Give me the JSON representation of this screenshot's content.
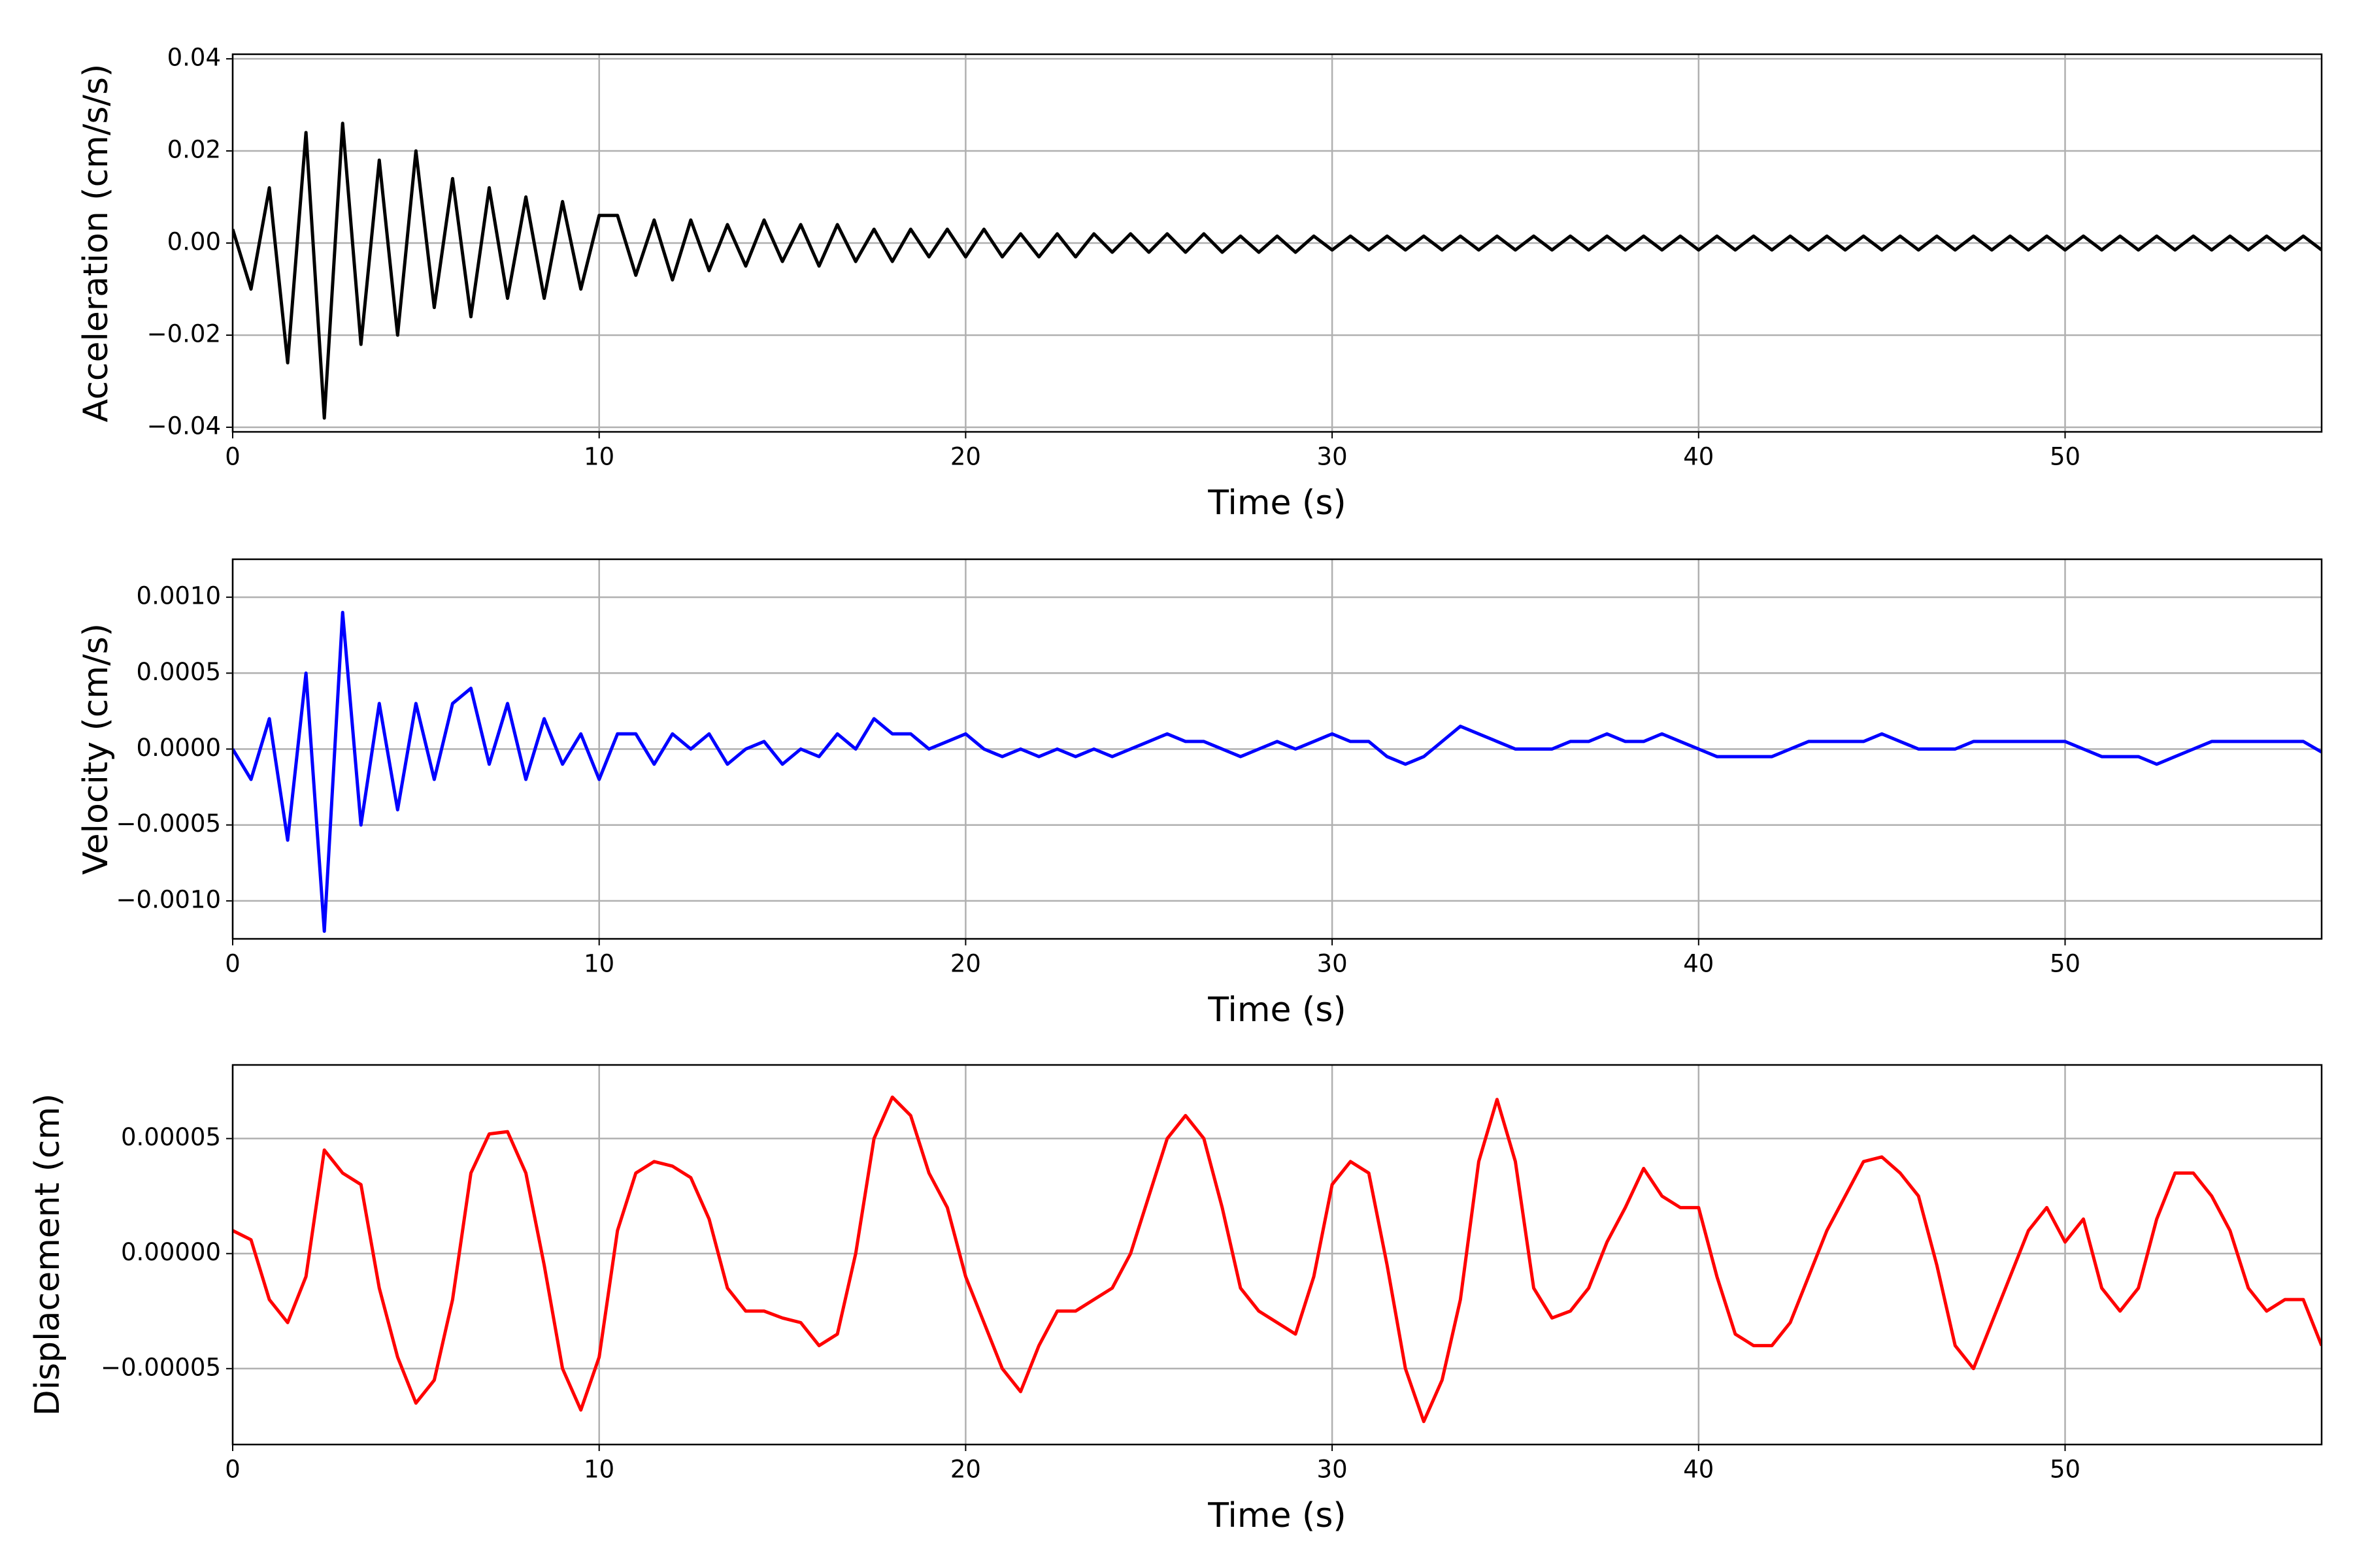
{
  "chart_data": [
    {
      "type": "line",
      "xlabel": "Time (s)",
      "ylabel": "Acceleration (cm/s/s)",
      "color": "#000000",
      "grid": true,
      "xlim": [
        0,
        57
      ],
      "xticks": [
        0,
        10,
        20,
        30,
        40,
        50
      ],
      "ylim": [
        -0.041,
        0.041
      ],
      "yticks": [
        {
          "value": -0.04,
          "label": "−0.04"
        },
        {
          "value": -0.02,
          "label": "−0.02"
        },
        {
          "value": 0,
          "label": "0.00"
        },
        {
          "value": 0.02,
          "label": "0.02"
        },
        {
          "value": 0.04,
          "label": "0.04"
        }
      ],
      "x": [
        0,
        0.5,
        1,
        1.5,
        2,
        2.5,
        3,
        3.5,
        4,
        4.5,
        5,
        5.5,
        6,
        6.5,
        7,
        7.5,
        8,
        8.5,
        9,
        9.5,
        10,
        10.5,
        11,
        11.5,
        12,
        12.5,
        13,
        13.5,
        14,
        14.5,
        15,
        15.5,
        16,
        16.5,
        17,
        17.5,
        18,
        18.5,
        19,
        19.5,
        20,
        20.5,
        21,
        21.5,
        22,
        22.5,
        23,
        23.5,
        24,
        24.5,
        25,
        25.5,
        26,
        26.5,
        27,
        27.5,
        28,
        28.5,
        29,
        29.5,
        30,
        30.5,
        31,
        31.5,
        32,
        32.5,
        33,
        33.5,
        34,
        34.5,
        35,
        35.5,
        36,
        36.5,
        37,
        37.5,
        38,
        38.5,
        39,
        39.5,
        40,
        40.5,
        41,
        41.5,
        42,
        42.5,
        43,
        43.5,
        44,
        44.5,
        45,
        45.5,
        46,
        46.5,
        47,
        47.5,
        48,
        48.5,
        49,
        49.5,
        50,
        50.5,
        51,
        51.5,
        52,
        52.5,
        53,
        53.5,
        54,
        54.5,
        55,
        55.5,
        56,
        56.5,
        57
      ],
      "values": [
        0.003,
        -0.01,
        0.012,
        -0.026,
        0.024,
        -0.038,
        0.026,
        -0.022,
        0.018,
        -0.02,
        0.02,
        -0.014,
        0.014,
        -0.016,
        0.012,
        -0.012,
        0.01,
        -0.012,
        0.009,
        -0.01,
        0.006,
        0.006,
        -0.007,
        0.005,
        -0.008,
        0.005,
        -0.006,
        0.004,
        -0.005,
        0.005,
        -0.004,
        0.004,
        -0.005,
        0.004,
        -0.004,
        0.003,
        -0.004,
        0.003,
        -0.003,
        0.003,
        -0.003,
        0.003,
        -0.003,
        0.002,
        -0.003,
        0.002,
        -0.003,
        0.002,
        -0.002,
        0.002,
        -0.002,
        0.002,
        -0.002,
        0.002,
        -0.002,
        0.0015,
        -0.002,
        0.0015,
        -0.002,
        0.0015,
        -0.0015,
        0.0015,
        -0.0015,
        0.0015,
        -0.0015,
        0.0015,
        -0.0015,
        0.0015,
        -0.0015,
        0.0015,
        -0.0015,
        0.0015,
        -0.0015,
        0.0015,
        -0.0015,
        0.0015,
        -0.0015,
        0.0015,
        -0.0015,
        0.0015,
        -0.0015,
        0.0015,
        -0.0015,
        0.0015,
        -0.0015,
        0.0015,
        -0.0015,
        0.0015,
        -0.0015,
        0.0015,
        -0.0015,
        0.0015,
        -0.0015,
        0.0015,
        -0.0015,
        0.0015,
        -0.0015,
        0.0015,
        -0.0015,
        0.0015,
        -0.0015,
        0.0015,
        -0.0015,
        0.0015,
        -0.0015,
        0.0015,
        -0.0015,
        0.0015,
        -0.0015,
        0.0015,
        -0.0015,
        0.0015,
        -0.0015,
        0.0015,
        -0.0015
      ]
    },
    {
      "type": "line",
      "xlabel": "Time (s)",
      "ylabel": "Velocity (cm/s)",
      "color": "#0000ff",
      "grid": true,
      "xlim": [
        0,
        57
      ],
      "xticks": [
        0,
        10,
        20,
        30,
        40,
        50
      ],
      "ylim": [
        -0.00125,
        0.00125
      ],
      "yticks": [
        {
          "value": -0.001,
          "label": "−0.0010"
        },
        {
          "value": -0.0005,
          "label": "−0.0005"
        },
        {
          "value": 0,
          "label": "0.0000"
        },
        {
          "value": 0.0005,
          "label": "0.0005"
        },
        {
          "value": 0.001,
          "label": "0.0010"
        }
      ],
      "x": [
        0,
        0.5,
        1,
        1.5,
        2,
        2.5,
        3,
        3.5,
        4,
        4.5,
        5,
        5.5,
        6,
        6.5,
        7,
        7.5,
        8,
        8.5,
        9,
        9.5,
        10,
        10.5,
        11,
        11.5,
        12,
        12.5,
        13,
        13.5,
        14,
        14.5,
        15,
        15.5,
        16,
        16.5,
        17,
        17.5,
        18,
        18.5,
        19,
        19.5,
        20,
        20.5,
        21,
        21.5,
        22,
        22.5,
        23,
        23.5,
        24,
        24.5,
        25,
        25.5,
        26,
        26.5,
        27,
        27.5,
        28,
        28.5,
        29,
        29.5,
        30,
        30.5,
        31,
        31.5,
        32,
        32.5,
        33,
        33.5,
        34,
        34.5,
        35,
        35.5,
        36,
        36.5,
        37,
        37.5,
        38,
        38.5,
        39,
        39.5,
        40,
        40.5,
        41,
        41.5,
        42,
        42.5,
        43,
        43.5,
        44,
        44.5,
        45,
        45.5,
        46,
        46.5,
        47,
        47.5,
        48,
        48.5,
        49,
        49.5,
        50,
        50.5,
        51,
        51.5,
        52,
        52.5,
        53,
        53.5,
        54,
        54.5,
        55,
        55.5,
        56,
        56.5,
        57
      ],
      "values": [
        0,
        -0.0002,
        0.0002,
        -0.0006,
        0.0005,
        -0.0012,
        0.0009,
        -0.0005,
        0.0003,
        -0.0004,
        0.0003,
        -0.0002,
        0.0003,
        0.0004,
        -0.0001,
        0.0003,
        -0.0002,
        0.0002,
        -0.0001,
        0.0001,
        -0.0002,
        0.0001,
        0.0001,
        -0.0001,
        0.0001,
        0,
        0.0001,
        -0.0001,
        0,
        5e-05,
        -0.0001,
        0,
        -5e-05,
        0.0001,
        0,
        0.0002,
        0.0001,
        0.0001,
        0,
        5e-05,
        0.0001,
        0,
        -5e-05,
        0,
        -5e-05,
        0,
        -5e-05,
        0,
        -5e-05,
        0,
        5e-05,
        0.0001,
        5e-05,
        5e-05,
        0,
        -5e-05,
        0,
        5e-05,
        0,
        5e-05,
        0.0001,
        5e-05,
        5e-05,
        -5e-05,
        -0.0001,
        -5e-05,
        5e-05,
        0.00015,
        0.0001,
        5e-05,
        0,
        0,
        0,
        5e-05,
        5e-05,
        0.0001,
        5e-05,
        5e-05,
        0.0001,
        5e-05,
        0,
        -5e-05,
        -5e-05,
        -5e-05,
        -5e-05,
        0,
        5e-05,
        5e-05,
        5e-05,
        5e-05,
        0.0001,
        5e-05,
        0,
        0,
        0,
        5e-05,
        5e-05,
        5e-05,
        5e-05,
        5e-05,
        5e-05,
        0,
        -5e-05,
        -5e-05,
        -5e-05,
        -0.0001,
        -5e-05,
        0,
        5e-05,
        5e-05,
        5e-05,
        5e-05,
        5e-05,
        5e-05,
        -2e-05
      ]
    },
    {
      "type": "line",
      "xlabel": "Time (s)",
      "ylabel": "Displacement (cm)",
      "color": "#ff0000",
      "grid": true,
      "xlim": [
        0,
        57
      ],
      "xticks": [
        0,
        10,
        20,
        30,
        40,
        50
      ],
      "ylim": [
        -8.3e-05,
        8.2e-05
      ],
      "yticks": [
        {
          "value": -5e-05,
          "label": "−0.00005"
        },
        {
          "value": 0,
          "label": "0.00000"
        },
        {
          "value": 5e-05,
          "label": "0.00005"
        }
      ],
      "x": [
        0,
        0.5,
        1,
        1.5,
        2,
        2.5,
        3,
        3.5,
        4,
        4.5,
        5,
        5.5,
        6,
        6.5,
        7,
        7.5,
        8,
        8.5,
        9,
        9.5,
        10,
        10.5,
        11,
        11.5,
        12,
        12.5,
        13,
        13.5,
        14,
        14.5,
        15,
        15.5,
        16,
        16.5,
        17,
        17.5,
        18,
        18.5,
        19,
        19.5,
        20,
        20.5,
        21,
        21.5,
        22,
        22.5,
        23,
        23.5,
        24,
        24.5,
        25,
        25.5,
        26,
        26.5,
        27,
        27.5,
        28,
        28.5,
        29,
        29.5,
        30,
        30.5,
        31,
        31.5,
        32,
        32.5,
        33,
        33.5,
        34,
        34.5,
        35,
        35.5,
        36,
        36.5,
        37,
        37.5,
        38,
        38.5,
        39,
        39.5,
        40,
        40.5,
        41,
        41.5,
        42,
        42.5,
        43,
        43.5,
        44,
        44.5,
        45,
        45.5,
        46,
        46.5,
        47,
        47.5,
        48,
        48.5,
        49,
        49.5,
        50,
        50.5,
        51,
        51.5,
        52,
        52.5,
        53,
        53.5,
        54,
        54.5,
        55,
        55.5,
        56,
        56.5,
        57
      ],
      "values": [
        1e-05,
        6e-06,
        -2e-05,
        -3e-05,
        -1e-05,
        4.5e-05,
        3.5e-05,
        3e-05,
        -1.5e-05,
        -4.5e-05,
        -6.5e-05,
        -5.5e-05,
        -2e-05,
        3.5e-05,
        5.2e-05,
        5.3e-05,
        3.5e-05,
        -5e-06,
        -5e-05,
        -6.8e-05,
        -4.5e-05,
        1e-05,
        3.5e-05,
        4e-05,
        3.8e-05,
        3.3e-05,
        1.5e-05,
        -1.5e-05,
        -2.5e-05,
        -2.5e-05,
        -2.8e-05,
        -3e-05,
        -4e-05,
        -3.5e-05,
        0,
        5e-05,
        6.8e-05,
        6e-05,
        3.5e-05,
        2e-05,
        -1e-05,
        -3e-05,
        -5e-05,
        -6e-05,
        -4e-05,
        -2.5e-05,
        -2.5e-05,
        -2e-05,
        -1.5e-05,
        0,
        2.5e-05,
        5e-05,
        6e-05,
        5e-05,
        2e-05,
        -1.5e-05,
        -2.5e-05,
        -3e-05,
        -3.5e-05,
        -1e-05,
        3e-05,
        4e-05,
        3.5e-05,
        -5e-06,
        -5e-05,
        -7.3e-05,
        -5.5e-05,
        -2e-05,
        4e-05,
        6.7e-05,
        4e-05,
        -1.5e-05,
        -2.8e-05,
        -2.5e-05,
        -1.5e-05,
        5e-06,
        2e-05,
        3.7e-05,
        2.5e-05,
        2e-05,
        2e-05,
        -1e-05,
        -3.5e-05,
        -4e-05,
        -4e-05,
        -3e-05,
        -1e-05,
        1e-05,
        2.5e-05,
        4e-05,
        4.2e-05,
        3.5e-05,
        2.5e-05,
        -5e-06,
        -4e-05,
        -5e-05,
        -3e-05,
        -1e-05,
        1e-05,
        2e-05,
        5e-06,
        1.5e-05,
        -1.5e-05,
        -2.5e-05,
        -1.5e-05,
        1.5e-05,
        3.5e-05,
        3.5e-05,
        2.5e-05,
        1e-05,
        -1.5e-05,
        -2.5e-05,
        -2e-05,
        -2e-05,
        -4e-05
      ]
    }
  ]
}
